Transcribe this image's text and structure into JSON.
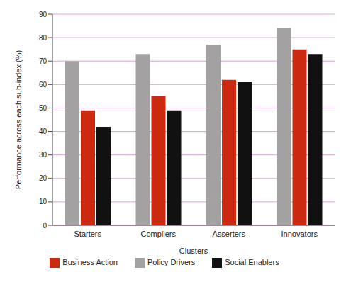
{
  "chart_data": {
    "type": "bar",
    "x_label": "Clusters",
    "y_label": "Performance across each sub-index (%)",
    "categories": [
      "Starters",
      "Compliers",
      "Asserters",
      "Innovators"
    ],
    "series": [
      {
        "name": "Policy Drivers",
        "color": "#a3a1a2",
        "values": [
          70,
          73,
          77,
          84
        ]
      },
      {
        "name": "Business Action",
        "color": "#cc2a10",
        "values": [
          49,
          55,
          62,
          75
        ]
      },
      {
        "name": "Social Enablers",
        "color": "#111111",
        "values": [
          42,
          49,
          61,
          73
        ]
      }
    ],
    "ylim": [
      0,
      90
    ],
    "yticks": [
      0,
      10,
      20,
      30,
      40,
      50,
      60,
      70,
      80,
      90
    ],
    "grid": true,
    "legend": "bottom"
  }
}
